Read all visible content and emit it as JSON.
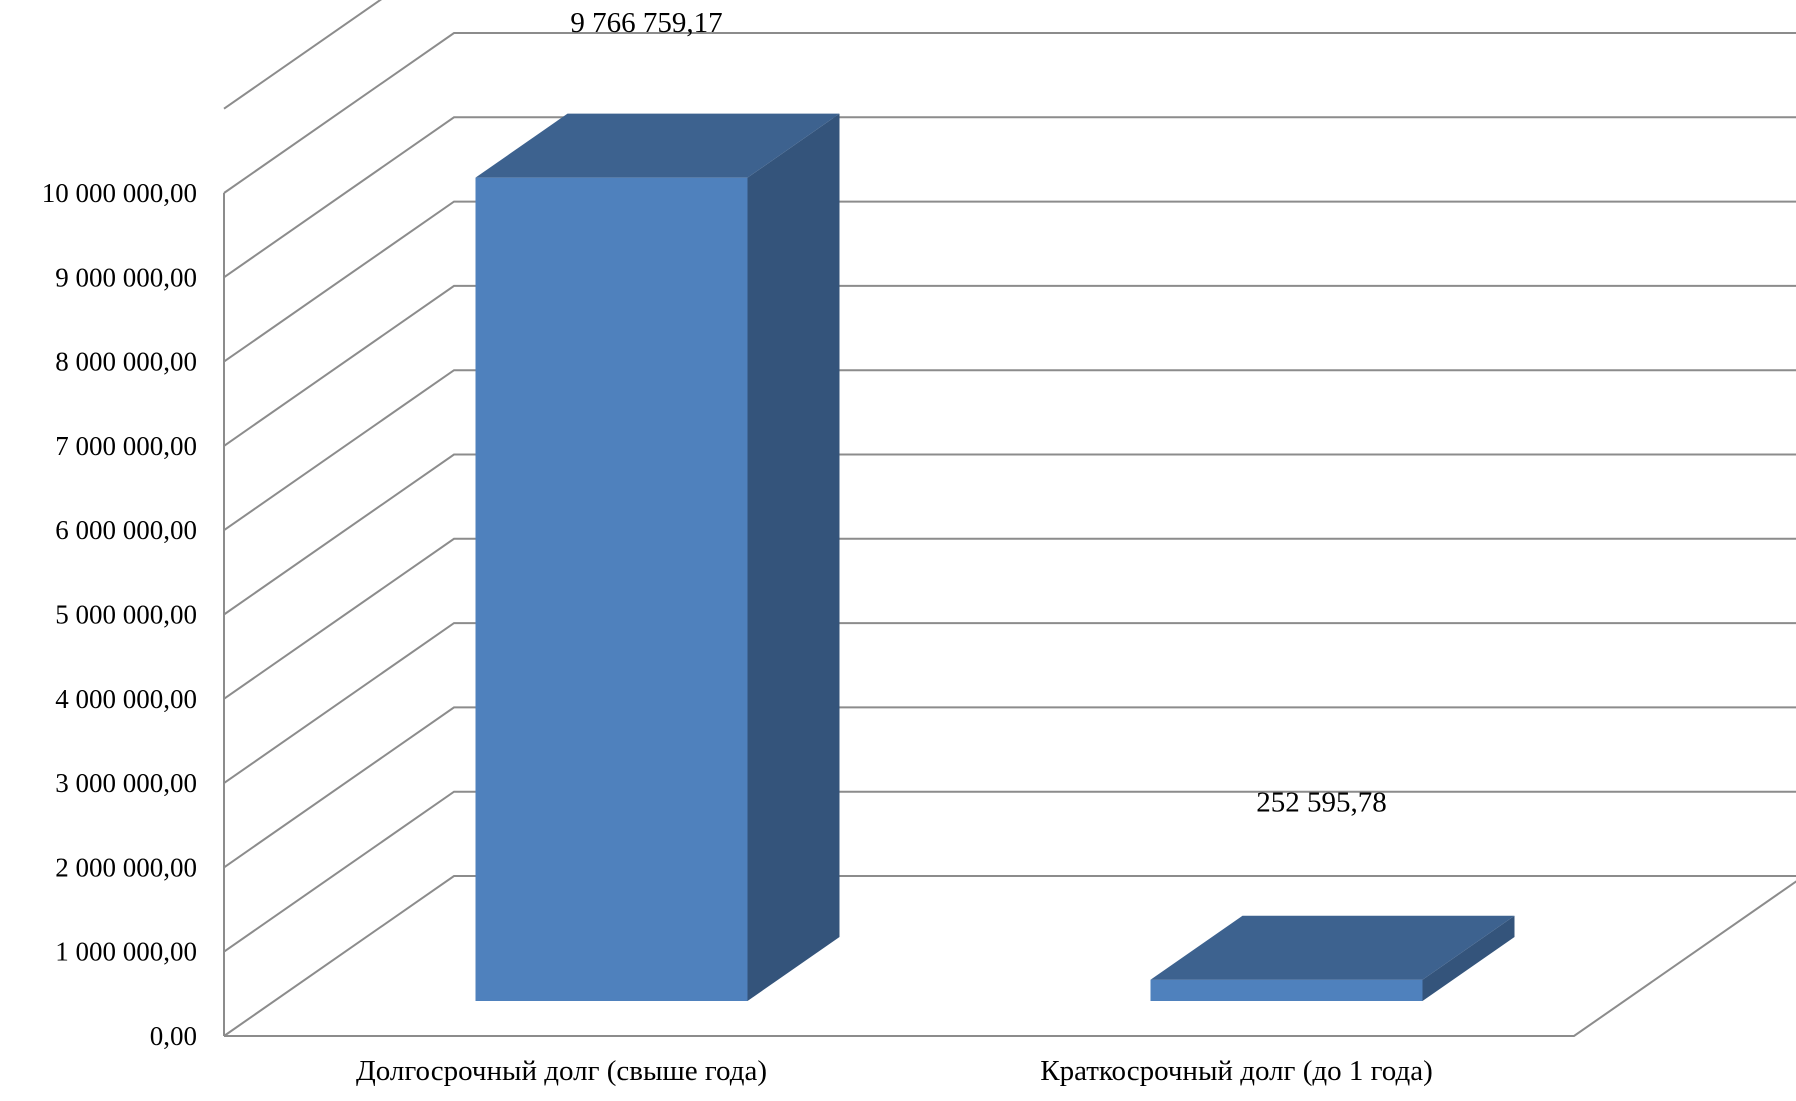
{
  "chart_data": {
    "type": "bar",
    "style": "3d",
    "title": "",
    "xlabel": "",
    "ylabel": "",
    "categories": [
      "Долгосрочный долг (свыше года)",
      "Краткосрочный долг (до 1 года)"
    ],
    "values": [
      9766759.17,
      252595.78
    ],
    "data_labels": [
      "9 766 759,17",
      "252 595,78"
    ],
    "ylim": [
      0,
      10000000
    ],
    "yticks": [
      0,
      1000000,
      2000000,
      3000000,
      4000000,
      5000000,
      6000000,
      7000000,
      8000000,
      9000000,
      10000000
    ],
    "ytick_labels": [
      "0,00",
      "1 000 000,00",
      "2 000 000,00",
      "3 000 000,00",
      "4 000 000,00",
      "5 000 000,00",
      "6 000 000,00",
      "7 000 000,00",
      "8 000 000,00",
      "9 000 000,00",
      "10 000 000,00"
    ],
    "grid": true,
    "legend": "none",
    "colors": {
      "bar_front": "#4f81bd",
      "bar_top": "#3d628f",
      "bar_side": "#34547b",
      "grid": "#8c8c8c"
    }
  }
}
